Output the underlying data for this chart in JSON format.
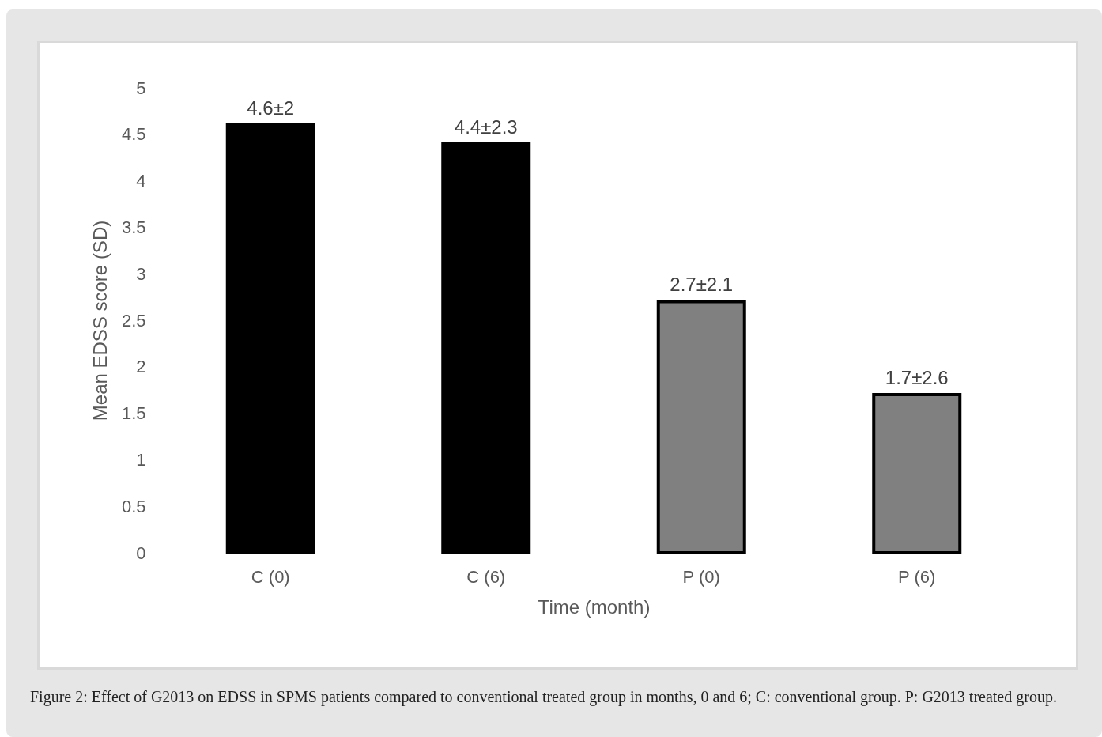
{
  "chart_data": {
    "type": "bar",
    "categories": [
      "C (0)",
      "C (6)",
      "P (0)",
      "P (6)"
    ],
    "values": [
      4.6,
      4.4,
      2.7,
      1.7
    ],
    "colors": [
      "#000000",
      "#000000",
      "#808080",
      "#808080"
    ],
    "value_labels": [
      "4.6±2",
      "4.4±2.3",
      "2.7±2.1",
      "1.7±2.6"
    ],
    "xlabel": "Time (month)",
    "ylabel": "Mean EDSS score (SD)",
    "ylim": [
      0,
      5
    ],
    "yticks": [
      0,
      0.5,
      1,
      1.5,
      2,
      2.5,
      3,
      3.5,
      4,
      4.5,
      5
    ],
    "grid": false,
    "legend": false,
    "annotations": [
      "Figure 2: Effect of G2013 on EDSS in SPMS patients compared to conventional treated group in months, 0 and 6; C: conventional group. P: G2013 treated group."
    ]
  }
}
